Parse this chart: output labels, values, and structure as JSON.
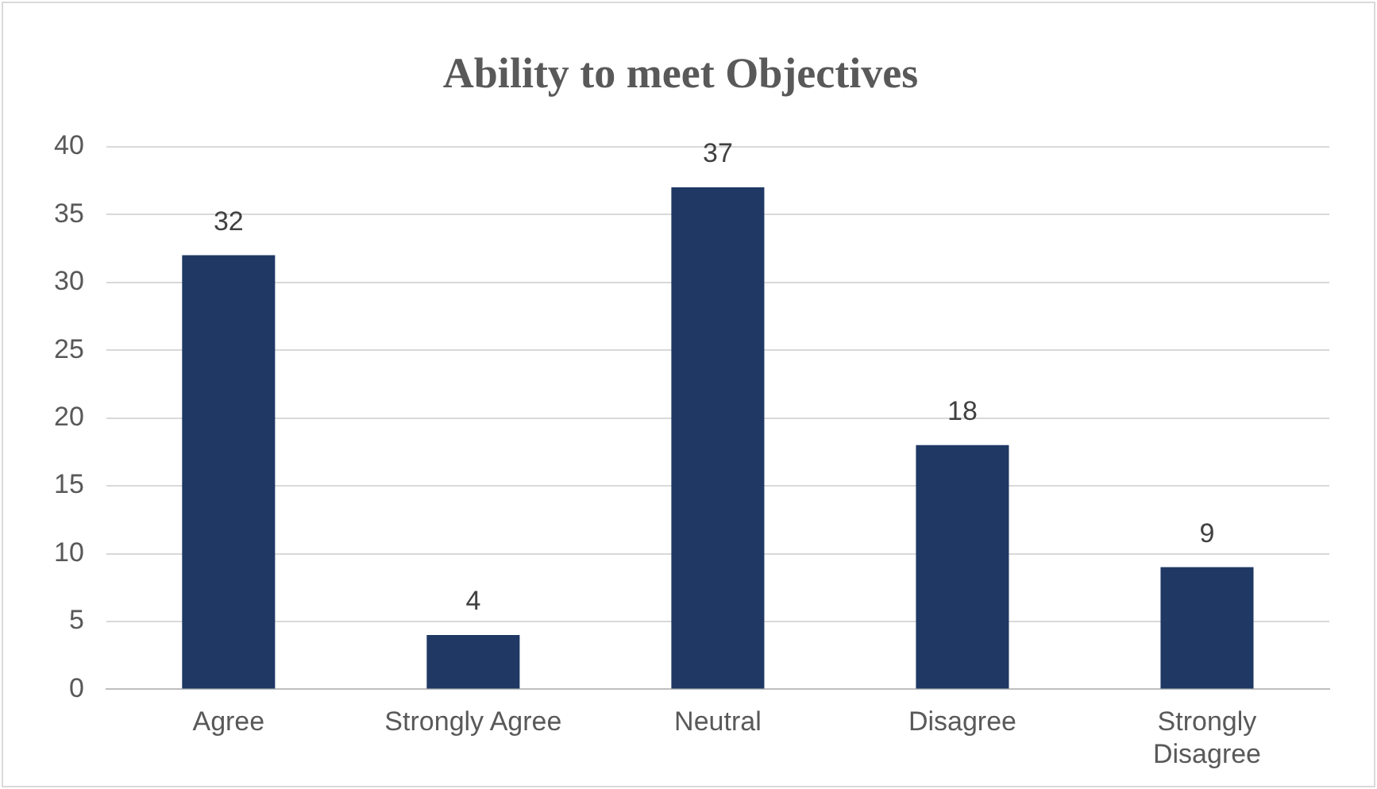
{
  "chart_data": {
    "type": "bar",
    "title": "Ability to meet Objectives",
    "categories": [
      "Agree",
      "Strongly Agree",
      "Neutral",
      "Disagree",
      "Strongly Disagree"
    ],
    "values": [
      32,
      4,
      37,
      18,
      9
    ],
    "color": "#1f3864",
    "ylim": [
      0,
      40
    ],
    "yticks": [
      0,
      5,
      10,
      15,
      20,
      25,
      30,
      35,
      40
    ],
    "grid": "y",
    "data_labels": true,
    "legend": false
  }
}
